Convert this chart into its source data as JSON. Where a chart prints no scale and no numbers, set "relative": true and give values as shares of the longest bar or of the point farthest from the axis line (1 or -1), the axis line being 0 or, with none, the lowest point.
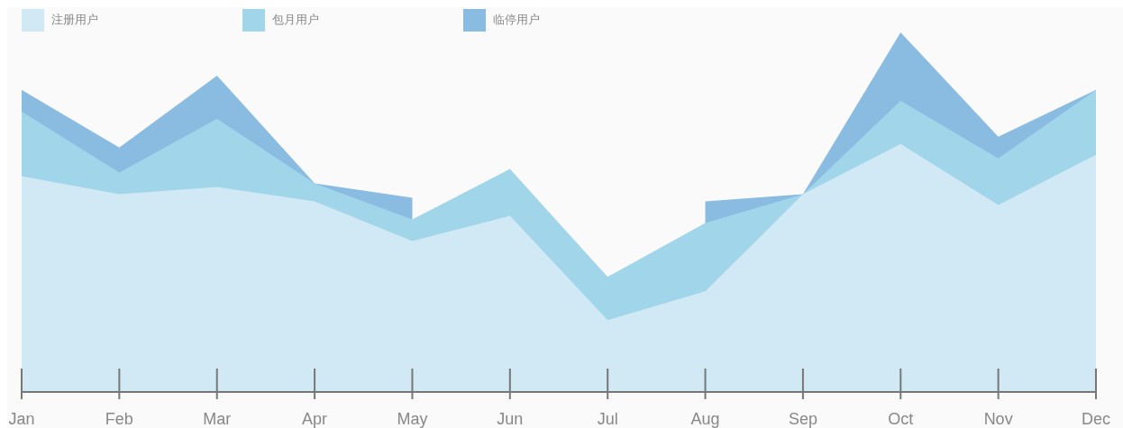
{
  "chart_data": {
    "type": "area",
    "relative": true,
    "legend": "top left",
    "grid": false,
    "marker": "none",
    "categories": [
      "Jan",
      "Feb",
      "Mar",
      "Apr",
      "May",
      "Jun",
      "Jul",
      "Aug",
      "Sep",
      "Oct",
      "Nov",
      "Dec"
    ],
    "series": [
      {
        "name": "注册用户",
        "color": "#d1e9f5",
        "values": [
          0.6,
          0.55,
          0.57,
          0.53,
          0.42,
          0.49,
          0.2,
          0.28,
          0.55,
          0.69,
          0.52,
          0.66
        ]
      },
      {
        "name": "包月用户",
        "color": "#a0d5ea",
        "values": [
          0.78,
          0.61,
          0.76,
          0.58,
          0.48,
          0.62,
          0.32,
          0.47,
          0.55,
          0.81,
          0.65,
          0.84
        ]
      },
      {
        "name": "临停用户",
        "color": "#8abbe0",
        "values": [
          0.84,
          0.68,
          0.88,
          0.58,
          0.54,
          null,
          null,
          0.53,
          0.55,
          1,
          0.71,
          0.84
        ]
      }
    ]
  }
}
